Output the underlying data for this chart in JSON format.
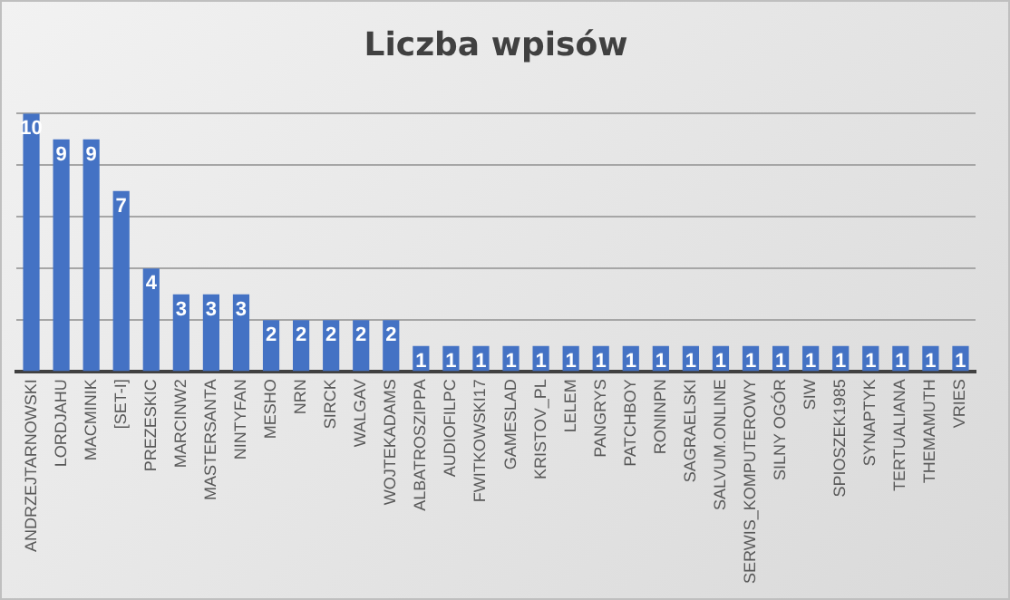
{
  "chart_data": {
    "type": "bar",
    "title": "Liczba wpisów",
    "categories": [
      "ANDRZEJTARNOWSKI",
      "LORDJAHU",
      "MACMINIK",
      "[SET-I]",
      "PREZESKIC",
      "MARCINW2",
      "MASTERSANTA",
      "NINTYFAN",
      "MESHO",
      "NRN",
      "SIRCK",
      "WALGAV",
      "WOJTEKADAMS",
      "ALBATROSZIPPA",
      "AUDIOFILPC",
      "FWITKOWSKI17",
      "GAMESLAD",
      "KRISTOV_PL",
      "LELEM",
      "PANGRYS",
      "PATCHBOY",
      "RONINPN",
      "SAGRAELSKI",
      "SALVUM.ONLINE",
      "SERWIS_KOMPUTEROWY",
      "SILNY OGÓR",
      "SIW",
      "SPIOSZEK1985",
      "SYNAPTYK",
      "TERTUALIANA",
      "THEMAMUTH",
      "VRIES"
    ],
    "values": [
      10,
      9,
      9,
      7,
      4,
      3,
      3,
      3,
      2,
      2,
      2,
      2,
      2,
      1,
      1,
      1,
      1,
      1,
      1,
      1,
      1,
      1,
      1,
      1,
      1,
      1,
      1,
      1,
      1,
      1,
      1,
      1
    ],
    "color": "#4472c4",
    "ylim": [
      0,
      10
    ],
    "yticks": [
      {
        "value": 0,
        "label": null
      },
      {
        "value": 2,
        "label": null
      },
      {
        "value": 4,
        "label": null
      },
      {
        "value": 6,
        "label": null
      },
      {
        "value": 8,
        "label": null
      },
      {
        "value": 10,
        "label": null
      }
    ],
    "grid": "y",
    "tick_labels": "x",
    "data_labels": true
  }
}
